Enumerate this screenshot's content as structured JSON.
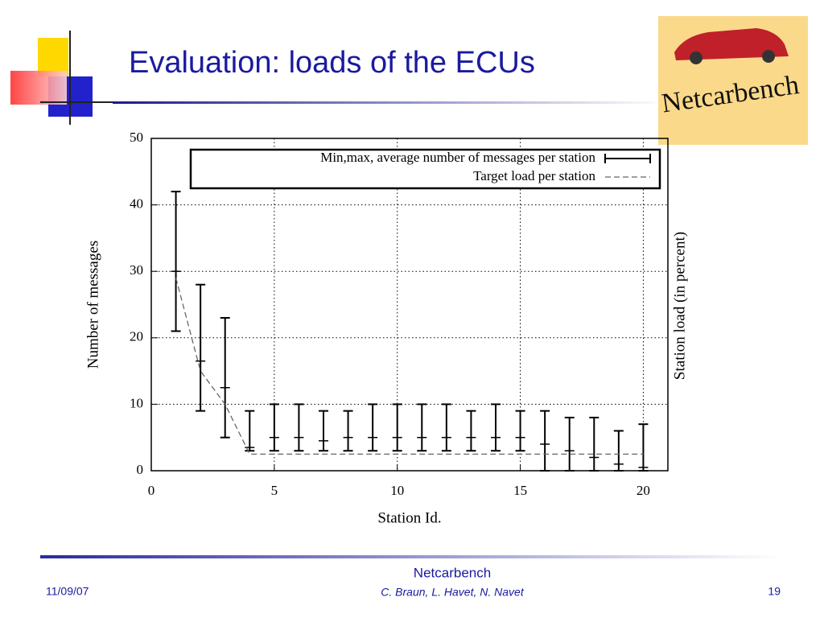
{
  "slide": {
    "title": "Evaluation: loads of the ECUs",
    "logo_text": "Netcarbench",
    "footer_title": "Netcarbench",
    "footer_authors": "C. Braun, L. Havet, N. Navet",
    "date": "11/09/07",
    "page": "19"
  },
  "chart_data": {
    "type": "errorbar",
    "x_label": "Station Id.",
    "y_label": "Number of messages",
    "y2_label": "Station load (in percent)",
    "xlim": [
      0,
      21
    ],
    "ylim": [
      0,
      50
    ],
    "xticks": [
      0,
      5,
      10,
      15,
      20
    ],
    "yticks": [
      0,
      10,
      20,
      30,
      40,
      50
    ],
    "grid": true,
    "legend": "top-right",
    "series": [
      {
        "name": "Min,max, average number of messages per station",
        "color": "#000000",
        "x": [
          1,
          2,
          3,
          4,
          5,
          6,
          7,
          8,
          9,
          10,
          11,
          12,
          13,
          14,
          15,
          16,
          17,
          18,
          19,
          20
        ],
        "values": [
          30,
          16.5,
          12.5,
          3.5,
          5,
          5,
          4.5,
          5,
          5,
          5,
          5,
          5,
          5,
          5,
          5,
          4,
          3,
          2,
          1,
          0.5
        ],
        "min": [
          21,
          9,
          5,
          3,
          3,
          3,
          3,
          3,
          3,
          3,
          3,
          3,
          3,
          3,
          3,
          0,
          0,
          0,
          0,
          0
        ],
        "max": [
          42,
          28,
          23,
          9,
          10,
          10,
          9,
          9,
          10,
          10,
          10,
          10,
          9,
          10,
          9,
          9,
          8,
          8,
          6,
          7
        ]
      },
      {
        "name": "Target load per station",
        "color": "#666666",
        "style": "dashed",
        "x": [
          1,
          2,
          3,
          4,
          5,
          6,
          7,
          8,
          9,
          10,
          11,
          12,
          13,
          14,
          15,
          16,
          17,
          18,
          19,
          20
        ],
        "values": [
          29,
          15,
          10,
          2.5,
          2.5,
          2.5,
          2.5,
          2.5,
          2.5,
          2.5,
          2.5,
          2.5,
          2.5,
          2.5,
          2.5,
          2.5,
          2.5,
          2.5,
          2.5,
          2.5
        ]
      }
    ]
  }
}
